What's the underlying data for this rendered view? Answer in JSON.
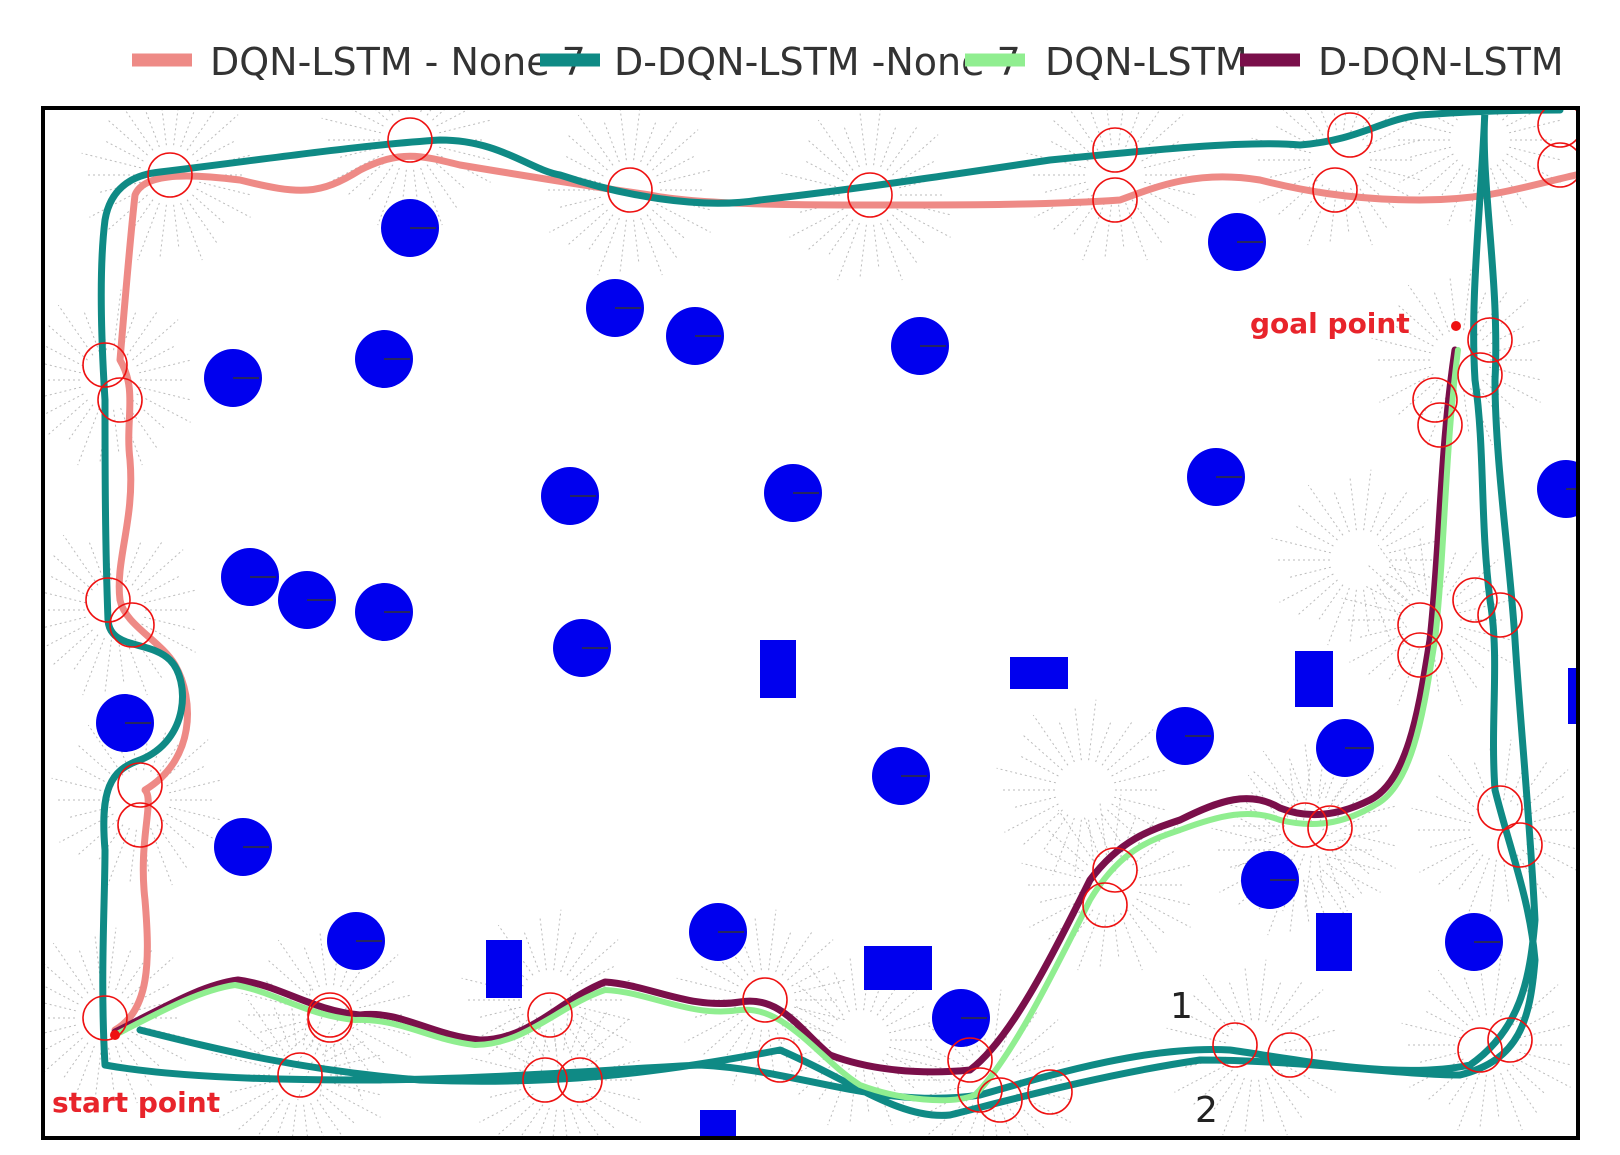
{
  "legend": [
    {
      "label": "DQN-LSTM - None 7",
      "color": "#ee8a86"
    },
    {
      "label": "D-DQN-LSTM -None 7",
      "color": "#0f8a85"
    },
    {
      "label": "DQN-LSTM",
      "color": "#90ee90"
    },
    {
      "label": "D-DQN-LSTM",
      "color": "#7a0f4a"
    }
  ],
  "labels": {
    "start": "start point",
    "goal": "goal point",
    "route_1": "1",
    "route_2": "2"
  },
  "colors": {
    "obstacle": "#0000ee",
    "marker": "#ee1111",
    "scan": "#bbbbbb"
  }
}
